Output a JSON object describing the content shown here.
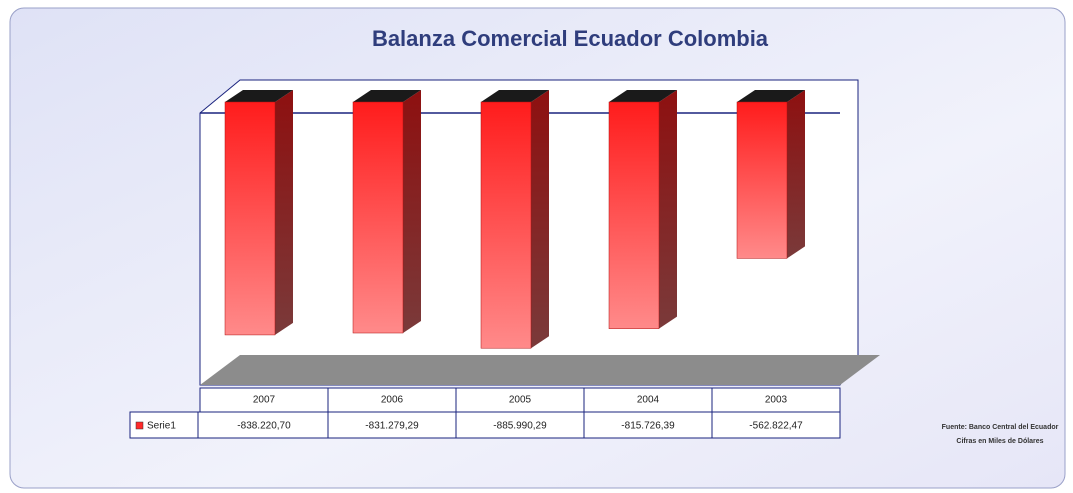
{
  "chart_data": {
    "type": "bar3d",
    "title": "Balanza Comercial Ecuador Colombia",
    "categories": [
      "2007",
      "2006",
      "2005",
      "2004",
      "2003"
    ],
    "series": [
      {
        "name": "Serie1",
        "color": "#ff2a2a",
        "values": [
          -838220.7,
          -831279.29,
          -885990.29,
          -815726.39,
          -562822.47
        ],
        "value_labels": [
          "-838.220,70",
          "-831.279,29",
          "-885.990,29",
          "-815.726,39",
          "-562.822,47"
        ]
      }
    ],
    "ylim": [
      -950000,
      0
    ],
    "annotations": [
      "Fuente: Banco Central del Ecuador",
      "Cifras en Miles de Dólares"
    ]
  }
}
